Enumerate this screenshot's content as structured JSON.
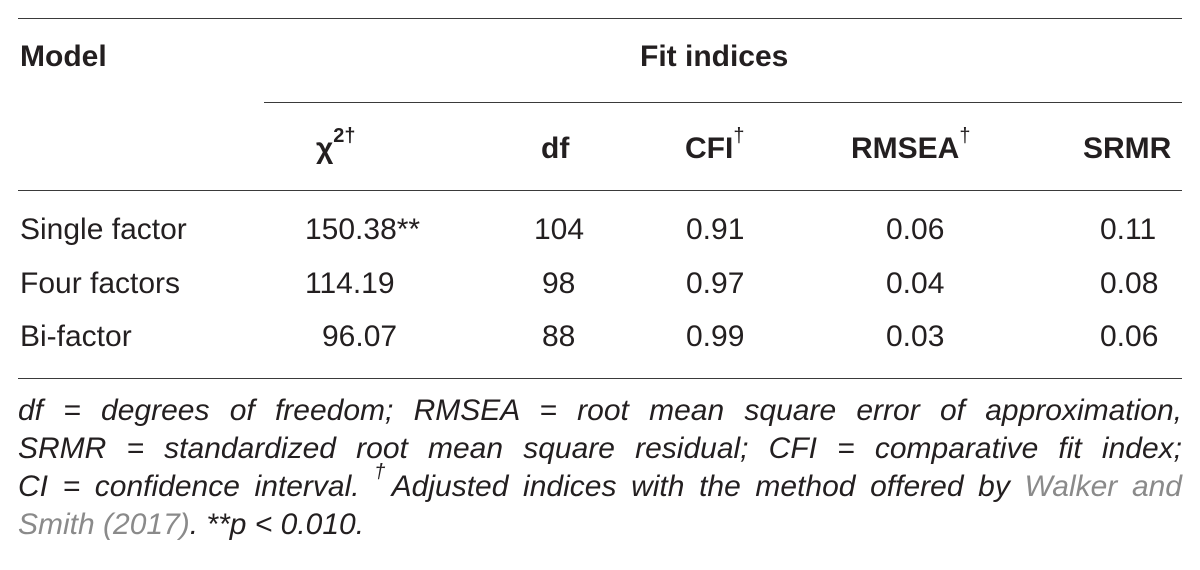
{
  "table": {
    "header": {
      "model_label": "Model",
      "fit_indices_label": "Fit indices",
      "columns": {
        "chi": "χ",
        "chi_sup": "2†",
        "df": "df",
        "cfi": "CFI",
        "cfi_sup": "†",
        "rmsea": "RMSEA",
        "rmsea_sup": "†",
        "srmr": "SRMR"
      }
    },
    "rows": [
      {
        "model": "Single factor",
        "chi2": "150.38**",
        "df": "104",
        "cfi": "0.91",
        "rmsea": "0.06",
        "srmr": "0.11"
      },
      {
        "model": "Four factors",
        "chi2": "114.19",
        "df": "98",
        "cfi": "0.97",
        "rmsea": "0.04",
        "srmr": "0.08"
      },
      {
        "model": "Bi-factor",
        "chi2": "96.07",
        "df": "88",
        "cfi": "0.99",
        "rmsea": "0.03",
        "srmr": "0.06"
      }
    ],
    "note": {
      "line1": "df = degrees of freedom; RMSEA = root mean square error of approximation,",
      "line2": "SRMR = standardized root mean square residual; CFI = comparative fit index;",
      "line3_a": "CI = confidence interval.",
      "line3_sup": "†",
      "line3_b": "Adjusted indices with the method offered by",
      "ref_part1": "Walker and",
      "ref_part2": "Smith (2017)",
      "line4_tail": ". **p < 0.010."
    }
  }
}
